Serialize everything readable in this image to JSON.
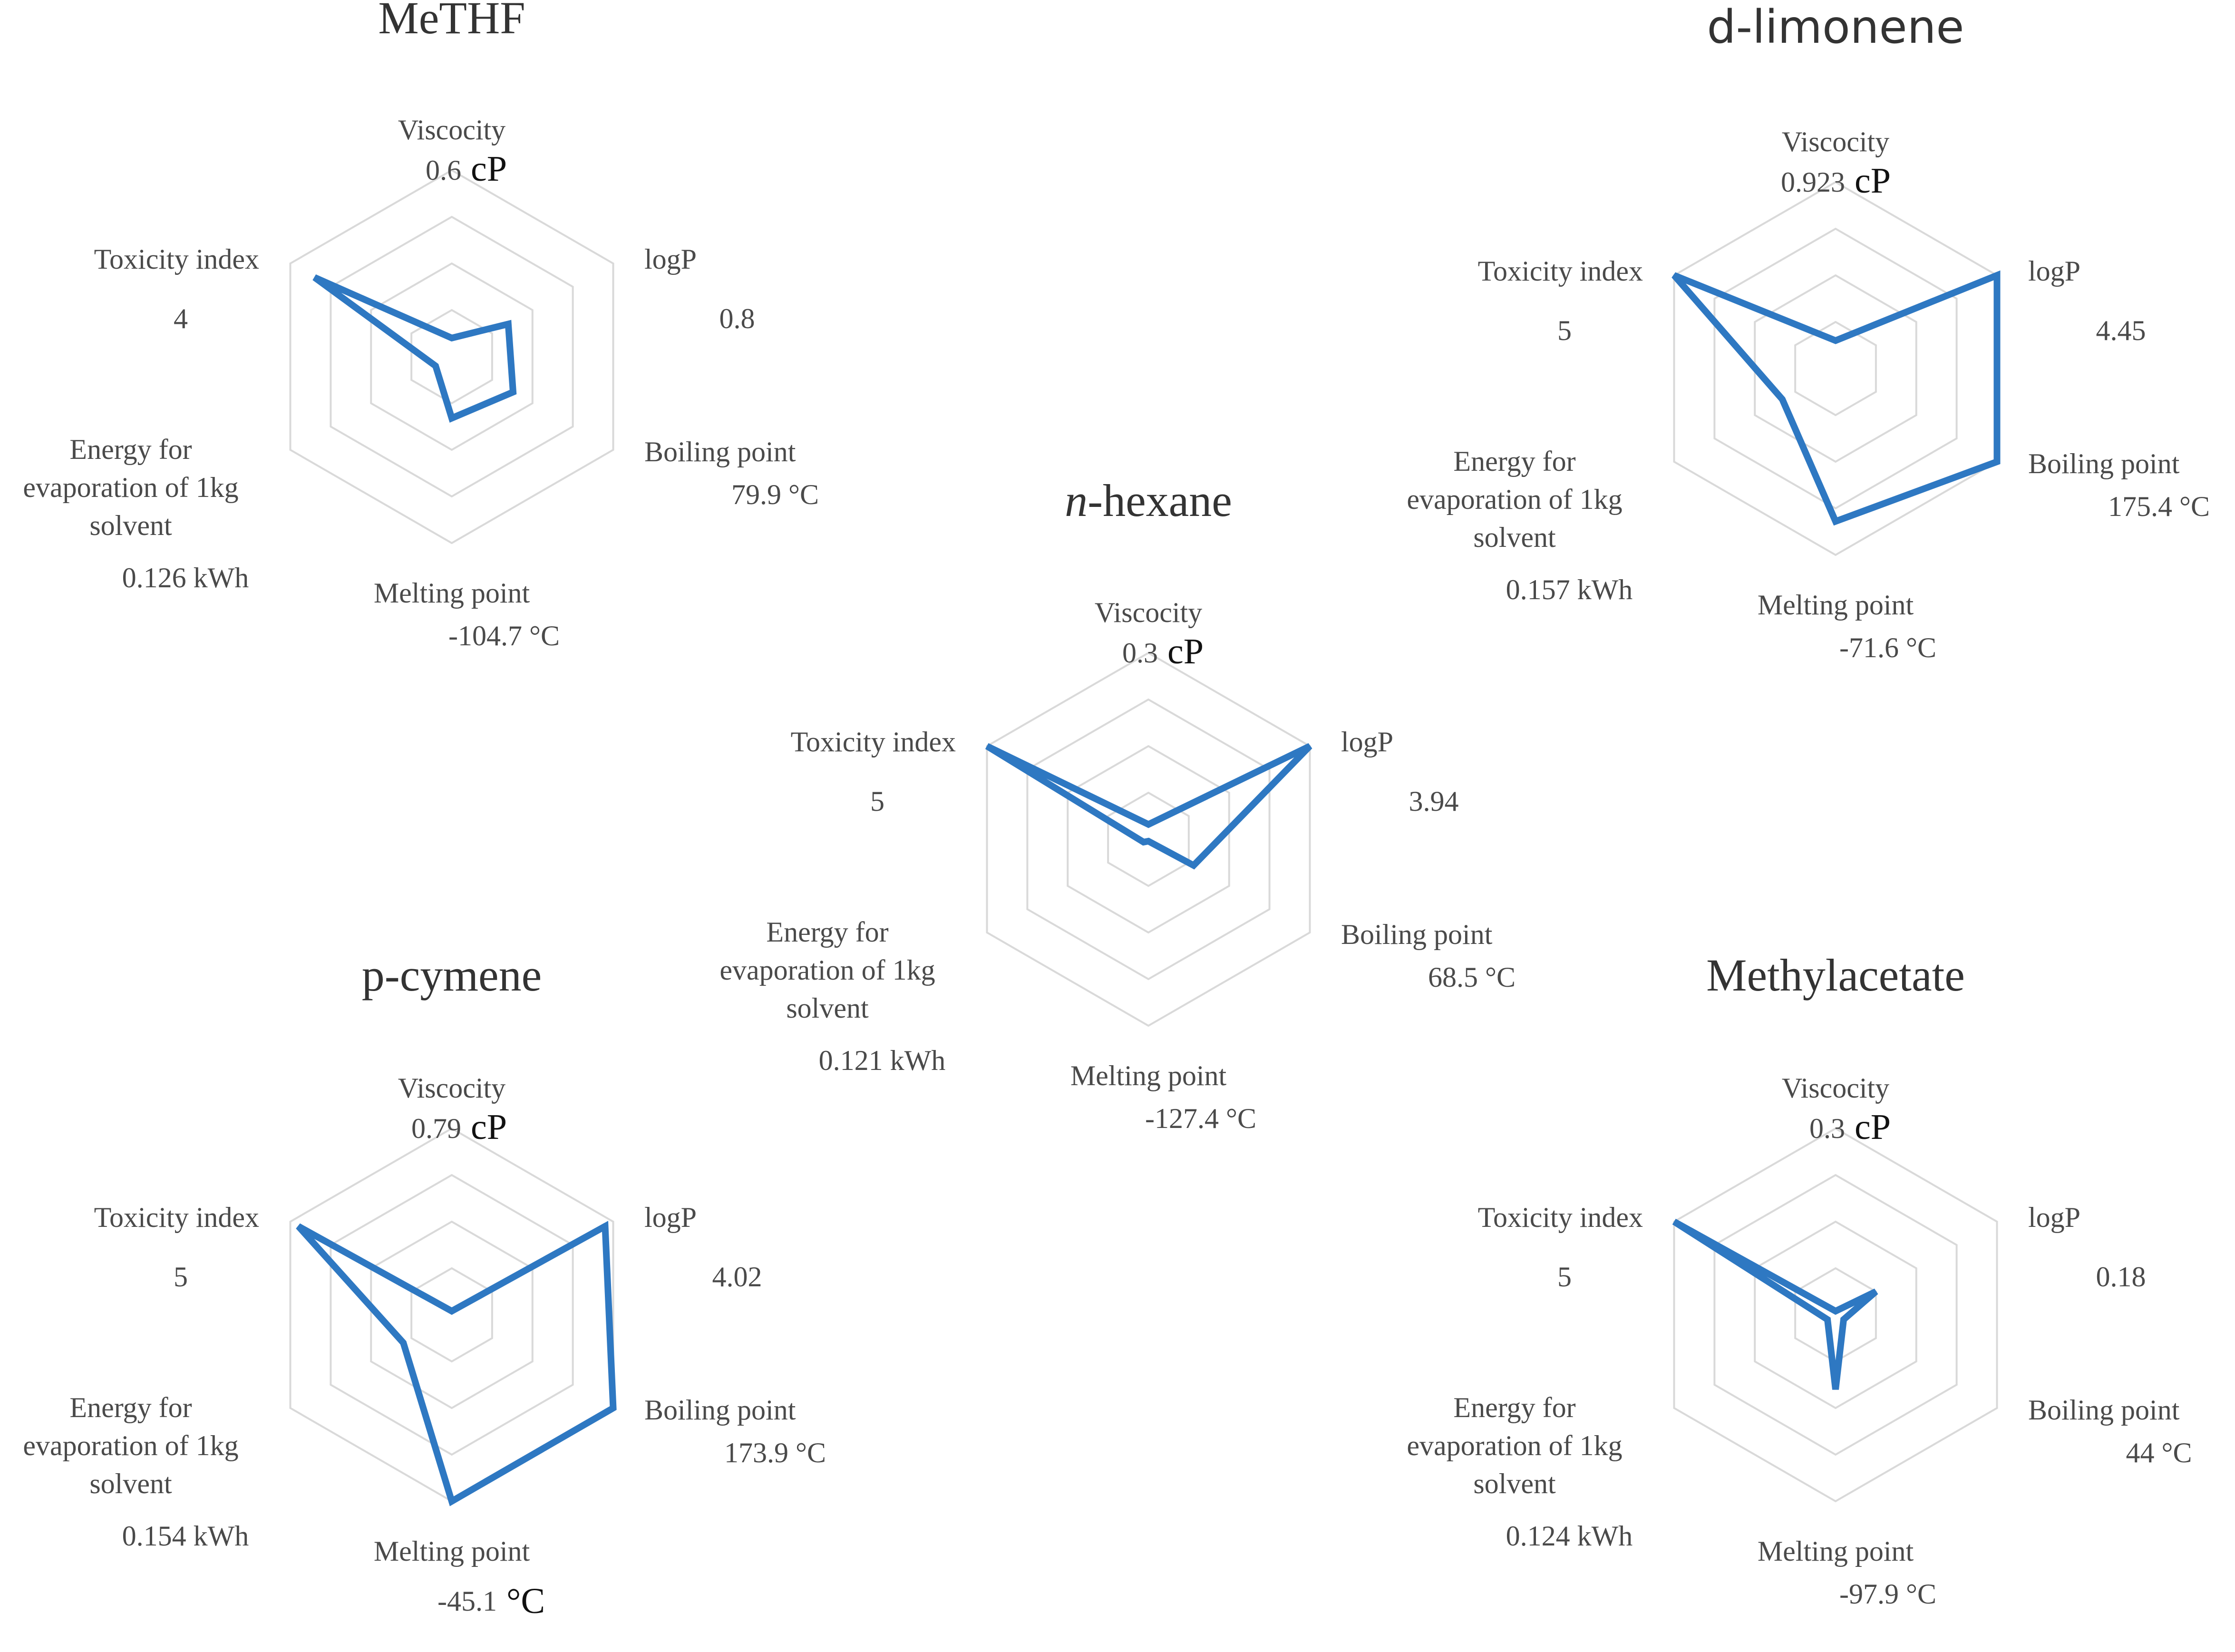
{
  "style": {
    "series_color": "#2e78c2",
    "grid_color": "#d9d9d9"
  },
  "axes": [
    "Viscocity",
    "logP",
    "Boiling point",
    "Melting point",
    "Energy for evaporation of 1kg solvent",
    "Toxicity index"
  ],
  "chart_data": [
    {
      "type": "radar",
      "title": "MeTHF",
      "title_italic_prefix": "",
      "title_font": "serif",
      "labels": {
        "viscosity": "Viscocity",
        "viscosity_value": "0.6",
        "viscosity_unit": "cP",
        "logp": "logP",
        "logp_value": "0.8",
        "boiling": "Boiling point",
        "boiling_value": "79.9 °C",
        "melting": "Melting point",
        "melting_value": "-104.7 °C",
        "energy_line1": "Energy for",
        "energy_line2": "evaporation of 1kg",
        "energy_line3": "solvent",
        "energy_value": "0.126 kWh",
        "toxicity": "Toxicity index",
        "toxicity_value": "4"
      },
      "values": [
        0.6,
        0.8,
        79.9,
        -104.7,
        0.126,
        4
      ],
      "normalized": [
        0.1,
        0.35,
        0.38,
        0.33,
        0.1,
        0.85
      ]
    },
    {
      "type": "radar",
      "title": "d-limonene",
      "title_italic_prefix": "",
      "title_font": "sans",
      "labels": {
        "viscosity": "Viscocity",
        "viscosity_value": "0.923",
        "viscosity_unit": "cP",
        "logp": "logP",
        "logp_value": "4.45",
        "boiling": "Boiling point",
        "boiling_value": "175.4 °C",
        "melting": "Melting point",
        "melting_value": "-71.6 °C",
        "energy_line1": "Energy for",
        "energy_line2": "evaporation of 1kg",
        "energy_line3": "solvent",
        "energy_value": "0.157 kWh",
        "toxicity": "Toxicity index",
        "toxicity_value": "5"
      },
      "values": [
        0.923,
        4.45,
        175.4,
        -71.6,
        0.157,
        5
      ],
      "normalized": [
        0.15,
        1.0,
        1.0,
        0.82,
        0.33,
        1.0
      ]
    },
    {
      "type": "radar",
      "title": "-hexane",
      "title_italic_prefix": "n",
      "title_font": "serif",
      "labels": {
        "viscosity": "Viscocity",
        "viscosity_value": "0.3",
        "viscosity_unit": "cP",
        "logp": "logP",
        "logp_value": "3.94",
        "boiling": "Boiling point",
        "boiling_value": "68.5 °C",
        "melting": "Melting point",
        "melting_value": "-127.4 °C",
        "energy_line1": "Energy for",
        "energy_line2": "evaporation of 1kg",
        "energy_line3": "solvent",
        "energy_value": "0.121 kWh",
        "toxicity": "Toxicity index",
        "toxicity_value": "5"
      },
      "values": [
        0.3,
        3.94,
        68.5,
        -127.4,
        0.121,
        5
      ],
      "normalized": [
        0.08,
        1.0,
        0.28,
        0.01,
        0.03,
        1.0
      ]
    },
    {
      "type": "radar",
      "title": "p-cymene",
      "title_italic_prefix": "",
      "title_font": "serif",
      "labels": {
        "viscosity": "Viscocity",
        "viscosity_value": "0.79",
        "viscosity_unit": "cP",
        "logp": "logP",
        "logp_value": "4.02",
        "boiling": "Boiling point",
        "boiling_value": "173.9 °C",
        "melting": "Melting point",
        "melting_value": "-45.1",
        "melting_unit": "°C",
        "energy_line1": "Energy for",
        "energy_line2": "evaporation of 1kg",
        "energy_line3": "solvent",
        "energy_value": "0.154 kWh",
        "toxicity": "Toxicity index",
        "toxicity_value": "5"
      },
      "values": [
        0.79,
        4.02,
        173.9,
        -45.1,
        0.154,
        5
      ],
      "normalized": [
        0.02,
        0.95,
        1.0,
        1.0,
        0.3,
        0.95
      ]
    },
    {
      "type": "radar",
      "title": "Methylacetate",
      "title_italic_prefix": "",
      "title_font": "serif",
      "labels": {
        "viscosity": "Viscocity",
        "viscosity_value": "0.3",
        "viscosity_unit": "cP",
        "logp": "logP",
        "logp_value": "0.18",
        "boiling": "Boiling point",
        "boiling_value": "44 °C",
        "melting": "Melting point",
        "melting_value": "-97.9 °C",
        "energy_line1": "Energy for",
        "energy_line2": "evaporation of 1kg",
        "energy_line3": "solvent",
        "energy_value": "0.124 kWh",
        "toxicity": "Toxicity index",
        "toxicity_value": "5"
      },
      "values": [
        0.3,
        0.18,
        44,
        -97.9,
        0.124,
        5
      ],
      "normalized": [
        0.02,
        0.25,
        0.05,
        0.4,
        0.05,
        1.0
      ]
    }
  ]
}
